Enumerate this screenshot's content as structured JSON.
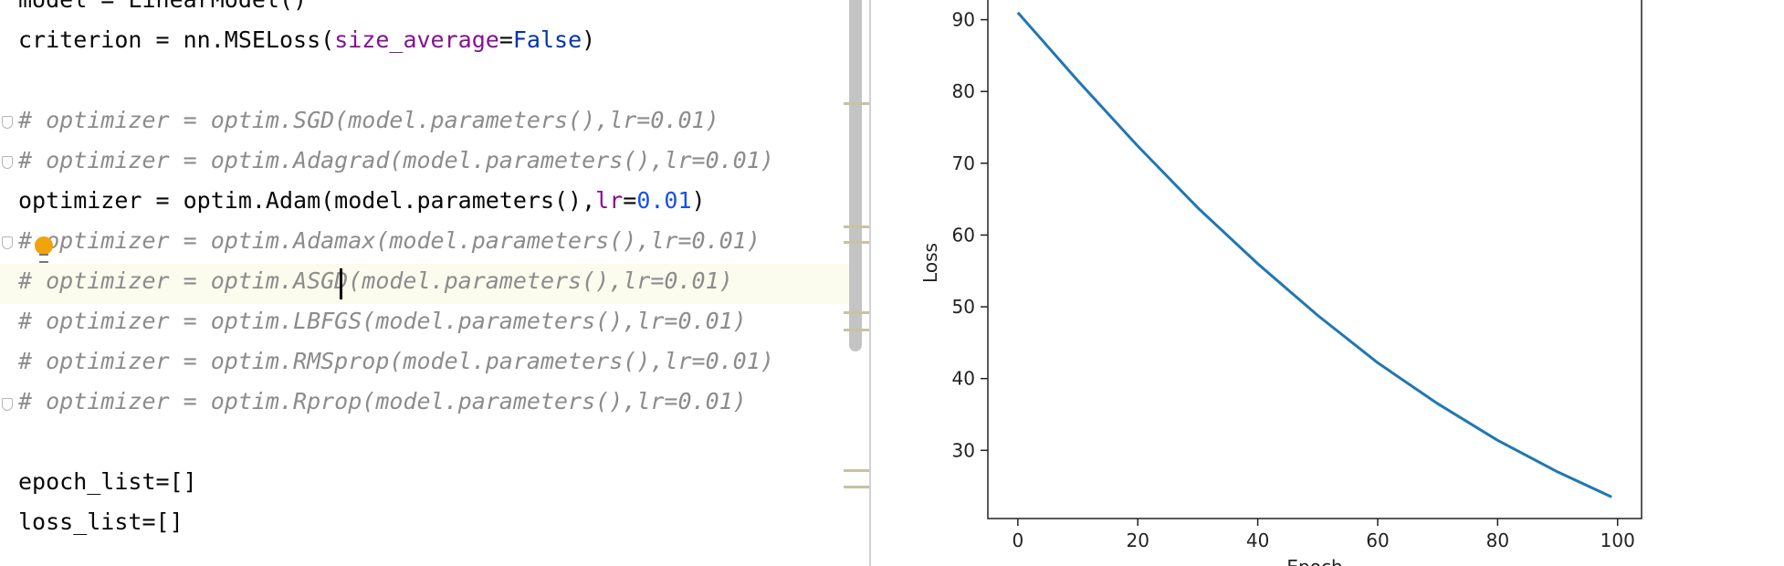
{
  "editor": {
    "lines": [
      {
        "segments": [
          {
            "t": "model = LinearModel()",
            "c": ""
          }
        ]
      },
      {
        "segments": [
          {
            "t": "criterion = nn.MSELoss(",
            "c": ""
          },
          {
            "t": "size_average",
            "c": "param"
          },
          {
            "t": "=",
            "c": ""
          },
          {
            "t": "False",
            "c": "kw"
          },
          {
            "t": ")",
            "c": ""
          }
        ]
      },
      {
        "segments": []
      },
      {
        "segments": [
          {
            "t": "# optimizer = optim.SGD(model.parameters(),lr=0.01)",
            "c": "comment"
          }
        ]
      },
      {
        "segments": [
          {
            "t": "# optimizer = optim.Adagrad(model.parameters(),lr=0.01)",
            "c": "comment"
          }
        ]
      },
      {
        "segments": [
          {
            "t": "optimizer = optim.Adam(model.parameters(),",
            "c": ""
          },
          {
            "t": "lr",
            "c": "param"
          },
          {
            "t": "=",
            "c": ""
          },
          {
            "t": "0.01",
            "c": "num"
          },
          {
            "t": ")",
            "c": ""
          }
        ]
      },
      {
        "segments": [
          {
            "t": "# optimizer = optim.Adamax(model.parameters(),lr=0.01)",
            "c": "comment"
          }
        ]
      },
      {
        "segments": [
          {
            "t": "# optimizer = optim.ASGD(model.parameters(),lr=0.01)",
            "c": "comment"
          }
        ]
      },
      {
        "segments": [
          {
            "t": "# optimizer = optim.LBFGS(model.parameters(),lr=0.01)",
            "c": "comment"
          }
        ]
      },
      {
        "segments": [
          {
            "t": "# optimizer = optim.RMSprop(model.parameters(),lr=0.01)",
            "c": "comment"
          }
        ]
      },
      {
        "segments": [
          {
            "t": "# optimizer = optim.Rprop(model.parameters(),lr=0.01)",
            "c": "comment"
          }
        ]
      },
      {
        "segments": []
      },
      {
        "segments": [
          {
            "t": "epoch_list=[]",
            "c": ""
          }
        ]
      },
      {
        "segments": [
          {
            "t": "loss_list=[]",
            "c": ""
          }
        ]
      }
    ],
    "current_line": 7,
    "gutter_icon": "lightbulb-icon"
  },
  "chart_data": {
    "type": "line",
    "xlabel": "Epoch",
    "ylabel": "Loss",
    "xlim": [
      -5,
      104
    ],
    "ylim": [
      20.5,
      93
    ],
    "xticks": [
      0,
      20,
      40,
      60,
      80,
      100
    ],
    "yticks": [
      30,
      40,
      50,
      60,
      70,
      80,
      90
    ],
    "grid": false,
    "series": [
      {
        "color": "#1f77b4",
        "x": [
          0,
          10,
          20,
          30,
          40,
          50,
          60,
          70,
          80,
          90,
          99
        ],
        "y": [
          91.0,
          81.5,
          72.4,
          63.8,
          56.0,
          48.8,
          42.2,
          36.5,
          31.4,
          27.0,
          23.5
        ]
      }
    ]
  }
}
